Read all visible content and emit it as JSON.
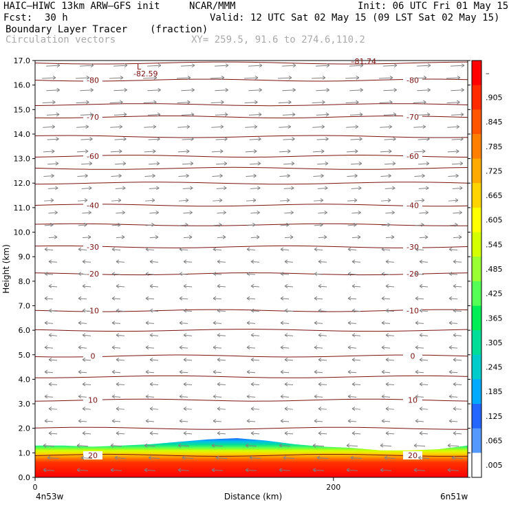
{
  "header": {
    "model": "HAIC–HIWC 13km ARW–GFS init",
    "org": "NCAR/MMM",
    "init": "Init: 06 UTC Fri 01 May 15",
    "fcst_label": "Fcst:",
    "fcst_value": "30 h",
    "valid": "Valid: 12 UTC Sat 02 May 15 (09 LST Sat 02 May 15)",
    "field": "Boundary Layer Tracer",
    "field_units": "(fraction)",
    "overlay": "Circulation vectors",
    "xy": "XY= 259.5, 91.6 to 274.6,110.2"
  },
  "chart_data": {
    "type": "heatmap",
    "title": "Boundary Layer Tracer",
    "units": "(fraction)",
    "xlabel": "Distance (km)",
    "ylabel": "Height (km)",
    "xlim": [
      0,
      290
    ],
    "ylim": [
      0.0,
      17.0
    ],
    "x_ticks": [
      "0",
      "200"
    ],
    "y_ticks": [
      "0.0",
      "1.0",
      "2.0",
      "3.0",
      "4.0",
      "5.0",
      "6.0",
      "7.0",
      "8.0",
      "9.0",
      "10.0",
      "11.0",
      "12.0",
      "13.0",
      "14.0",
      "15.0",
      "16.0",
      "17.0"
    ],
    "x_endpoints": [
      "4n53w",
      "6n51w"
    ],
    "colorbar_labels": [
      "–",
      ".905",
      ".845",
      ".785",
      ".725",
      ".665",
      ".605",
      ".545",
      ".485",
      ".425",
      ".365",
      ".305",
      ".245",
      ".185",
      ".125",
      ".065",
      ".005"
    ],
    "colorbar_colors": [
      "#ff0000",
      "#ff2a00",
      "#ff5500",
      "#ff7f00",
      "#ffaa00",
      "#ffd400",
      "#ffff00",
      "#d4ff00",
      "#99ff33",
      "#55ff55",
      "#00ee55",
      "#00dd99",
      "#00cccc",
      "#00aaff",
      "#2266ff",
      "#5599ff",
      "#ffffff"
    ],
    "tracer_top_km": [
      1.3,
      1.3,
      1.25,
      1.3,
      1.35,
      1.45,
      1.55,
      1.6,
      1.5,
      1.35,
      1.25,
      1.2,
      1.1,
      1.1,
      1.15,
      1.3
    ],
    "temperature_contours_C": [
      {
        "label": "-80",
        "y": 16.2
      },
      {
        "label": "-70",
        "y": 14.7
      },
      {
        "label": "-60",
        "y": 13.1
      },
      {
        "label": "-40",
        "y": 11.1
      },
      {
        "label": "-30",
        "y": 9.4
      },
      {
        "label": "-20",
        "y": 8.3
      },
      {
        "label": "-10",
        "y": 6.8
      },
      {
        "label": "0",
        "y": 4.95
      },
      {
        "label": "10",
        "y": 3.15
      },
      {
        "label": "20",
        "y": 0.9
      }
    ],
    "annotations": [
      "L",
      "-82.59",
      "–81.74"
    ],
    "vectors": "Circulation vectors: easterly-to-westerly flow, westward below ~9 km, eastward above ~10 km"
  }
}
